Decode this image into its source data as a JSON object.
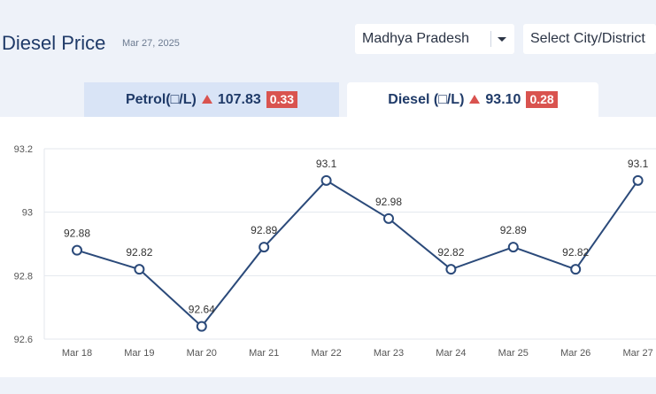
{
  "header": {
    "title": "Diesel Price",
    "date": "Mar 27, 2025"
  },
  "filters": {
    "state_value": "Madhya Pradesh",
    "city_value": "Select City/District"
  },
  "tabs": [
    {
      "fuel_label": "Petrol(□/L)",
      "price": "107.83",
      "change": "0.33",
      "active": false
    },
    {
      "fuel_label": "Diesel (□/L)",
      "price": "93.10",
      "change": "0.28",
      "active": true
    }
  ],
  "colors": {
    "accent": "#1f3a68",
    "line": "#2b4a7a",
    "increase": "#d9534f",
    "grid": "#e3e7ee"
  },
  "chart_data": {
    "type": "line",
    "x": [
      "Mar 18",
      "Mar 19",
      "Mar 20",
      "Mar 21",
      "Mar 22",
      "Mar 23",
      "Mar 24",
      "Mar 25",
      "Mar 26",
      "Mar 27"
    ],
    "series": [
      {
        "values": [
          92.88,
          92.82,
          92.64,
          92.89,
          93.1,
          92.98,
          92.82,
          92.89,
          92.82,
          93.1
        ]
      }
    ],
    "yticks": [
      "93.2",
      "93",
      "92.8",
      "92.6"
    ],
    "ylim": [
      92.6,
      93.2
    ],
    "grid": true,
    "data_labels": true
  }
}
